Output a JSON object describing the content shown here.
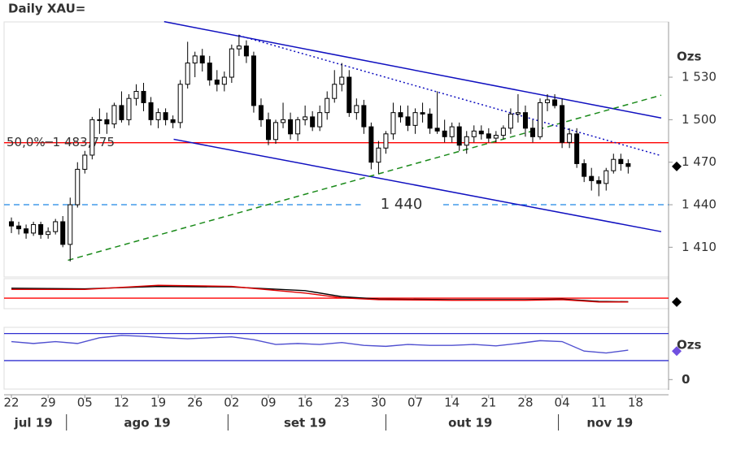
{
  "chart_data": {
    "type": "candlestick",
    "title": "Daily XAU=",
    "unit_label": "Ozs",
    "open": [
      1428,
      1425,
      1423,
      1420,
      1426,
      1419,
      1421,
      1428,
      1412,
      1440,
      1465,
      1475,
      1500,
      1500,
      1497,
      1510,
      1500,
      1515,
      1520,
      1512,
      1500,
      1505,
      1500,
      1498,
      1525,
      1540,
      1545,
      1540,
      1528,
      1525,
      1530,
      1550,
      1552,
      1545,
      1510,
      1500,
      1486,
      1498,
      1500,
      1490,
      1500,
      1502,
      1495,
      1505,
      1515,
      1525,
      1530,
      1505,
      1510,
      1495,
      1470,
      1480,
      1490,
      1505,
      1502,
      1496,
      1505,
      1504,
      1494,
      1492,
      1488,
      1495,
      1482,
      1488,
      1492,
      1490,
      1487,
      1489,
      1494,
      1504,
      1505,
      1494,
      1488,
      1512,
      1514,
      1510,
      1484,
      1490,
      1469,
      1460,
      1457,
      1455,
      1464,
      1472,
      1469
    ],
    "high": [
      1431,
      1428,
      1426,
      1428,
      1428,
      1424,
      1430,
      1432,
      1445,
      1470,
      1478,
      1502,
      1508,
      1505,
      1512,
      1520,
      1518,
      1525,
      1526,
      1516,
      1508,
      1508,
      1503,
      1528,
      1555,
      1548,
      1550,
      1545,
      1535,
      1534,
      1553,
      1560,
      1556,
      1548,
      1515,
      1505,
      1500,
      1512,
      1505,
      1502,
      1510,
      1506,
      1510,
      1520,
      1535,
      1540,
      1535,
      1515,
      1514,
      1498,
      1485,
      1492,
      1512,
      1510,
      1510,
      1508,
      1512,
      1508,
      1520,
      1500,
      1498,
      1498,
      1492,
      1496,
      1496,
      1494,
      1492,
      1496,
      1508,
      1518,
      1510,
      1500,
      1515,
      1518,
      1518,
      1515,
      1494,
      1494,
      1472,
      1466,
      1460,
      1466,
      1476,
      1476,
      1472
    ],
    "low": [
      1420,
      1419,
      1416,
      1418,
      1416,
      1416,
      1419,
      1410,
      1400,
      1438,
      1462,
      1472,
      1490,
      1490,
      1494,
      1498,
      1496,
      1510,
      1506,
      1496,
      1494,
      1496,
      1494,
      1494,
      1522,
      1530,
      1534,
      1524,
      1520,
      1520,
      1526,
      1545,
      1540,
      1505,
      1495,
      1482,
      1483,
      1494,
      1486,
      1485,
      1496,
      1492,
      1492,
      1500,
      1512,
      1520,
      1502,
      1500,
      1490,
      1465,
      1462,
      1476,
      1486,
      1498,
      1492,
      1490,
      1498,
      1490,
      1490,
      1484,
      1484,
      1478,
      1476,
      1484,
      1486,
      1484,
      1484,
      1486,
      1490,
      1498,
      1488,
      1484,
      1486,
      1506,
      1508,
      1480,
      1480,
      1466,
      1456,
      1450,
      1446,
      1450,
      1462,
      1464,
      1462
    ],
    "close": [
      1425,
      1423,
      1420,
      1426,
      1419,
      1421,
      1428,
      1412,
      1440,
      1465,
      1475,
      1500,
      1500,
      1497,
      1510,
      1500,
      1515,
      1520,
      1512,
      1500,
      1505,
      1500,
      1498,
      1525,
      1540,
      1545,
      1540,
      1528,
      1525,
      1530,
      1550,
      1552,
      1545,
      1510,
      1500,
      1486,
      1498,
      1500,
      1490,
      1500,
      1502,
      1495,
      1505,
      1515,
      1525,
      1530,
      1505,
      1510,
      1495,
      1470,
      1480,
      1490,
      1505,
      1502,
      1496,
      1505,
      1504,
      1494,
      1492,
      1488,
      1495,
      1482,
      1488,
      1492,
      1490,
      1487,
      1489,
      1494,
      1504,
      1505,
      1494,
      1488,
      1512,
      1514,
      1510,
      1484,
      1490,
      1469,
      1460,
      1457,
      1455,
      1464,
      1472,
      1469,
      1467
    ],
    "up_color": "#ffffff",
    "down_color": "#000000",
    "ylim": [
      1389,
      1569
    ],
    "yticks": [
      {
        "value": 1410,
        "label": "1 410"
      },
      {
        "value": 1440,
        "label": "1 440"
      },
      {
        "value": 1470,
        "label": "1 470"
      },
      {
        "value": 1500,
        "label": "1 500"
      },
      {
        "value": 1530,
        "label": "1 530"
      }
    ],
    "xlim": [
      -1,
      89.5
    ],
    "xticks": [
      {
        "value": 0,
        "label": "22"
      },
      {
        "value": 5,
        "label": "29"
      },
      {
        "value": 10,
        "label": "05"
      },
      {
        "value": 15,
        "label": "12"
      },
      {
        "value": 20,
        "label": "19"
      },
      {
        "value": 25,
        "label": "26"
      },
      {
        "value": 30,
        "label": "02"
      },
      {
        "value": 35,
        "label": "09"
      },
      {
        "value": 40,
        "label": "16"
      },
      {
        "value": 45,
        "label": "23"
      },
      {
        "value": 50,
        "label": "30"
      },
      {
        "value": 55,
        "label": "07"
      },
      {
        "value": 60,
        "label": "14"
      },
      {
        "value": 65,
        "label": "21"
      },
      {
        "value": 70,
        "label": "28"
      },
      {
        "value": 75,
        "label": "04"
      },
      {
        "value": 80,
        "label": "11"
      },
      {
        "value": 85,
        "label": "18"
      }
    ],
    "month_ticks": [
      {
        "value": 3,
        "label": "jul 19"
      },
      {
        "value": 18.5,
        "label": "ago 19"
      },
      {
        "value": 40,
        "label": "set 19"
      },
      {
        "value": 62.5,
        "label": "out 19"
      },
      {
        "value": 81.5,
        "label": "nov 19"
      }
    ],
    "month_separators": [
      7.5,
      29.5,
      51,
      74.5
    ],
    "trendlines": [
      {
        "x": [
          20.8,
          88.5
        ],
        "y": [
          1569.2,
          1501.2
        ],
        "color": "#1010c0",
        "style": "solid"
      },
      {
        "x": [
          22.1,
          88.5
        ],
        "y": [
          1486.2,
          1421.0
        ],
        "color": "#1010c0",
        "style": "solid"
      },
      {
        "x": [
          7.7,
          88.5
        ],
        "y": [
          1400.8,
          1517.3
        ],
        "color": "#1a8a1a",
        "style": "dashed"
      },
      {
        "x": [
          31.0,
          88.5
        ],
        "y": [
          1559.4,
          1474.6
        ],
        "color": "#1010c0",
        "style": "dotted"
      }
    ],
    "hlines": [
      {
        "value": 1483.775,
        "label": "50,0%─1 483,775",
        "color": "#ff0000",
        "style": "solid",
        "label_pos": "left"
      },
      {
        "value": 1440,
        "label": "1 440",
        "color": "#1e88e5",
        "style": "dashed",
        "label_pos": "middle"
      }
    ],
    "last_price": 1467,
    "ma_panel": {
      "ylim": [
        0,
        100
      ],
      "level": 35,
      "level_color": "#ff0000",
      "last": 22,
      "series": [
        {
          "color": "#000000",
          "x": [
            0,
            10,
            20,
            30,
            40,
            45,
            50,
            60,
            70,
            75,
            80,
            84
          ],
          "values": [
            68,
            66,
            74,
            72,
            60,
            40,
            32,
            30,
            30,
            32,
            24,
            23
          ]
        },
        {
          "color": "#e00000",
          "x": [
            0,
            10,
            20,
            30,
            40,
            45,
            50,
            60,
            70,
            75,
            80,
            84
          ],
          "values": [
            64,
            64,
            78,
            74,
            52,
            36,
            30,
            28,
            28,
            30,
            22,
            22
          ]
        }
      ]
    },
    "osc_panel": {
      "ylim": [
        -20,
        110
      ],
      "yticks": [
        0
      ],
      "unit_label": "Ozs",
      "levels": [
        40,
        97
      ],
      "level_color": "#3030d0",
      "last": 60,
      "series": [
        {
          "color": "#5050d0",
          "x": [
            0,
            3,
            6,
            9,
            12,
            15,
            18,
            21,
            24,
            27,
            30,
            33,
            36,
            39,
            42,
            45,
            48,
            51,
            54,
            57,
            60,
            63,
            66,
            69,
            72,
            75,
            78,
            81,
            84
          ],
          "values": [
            80,
            76,
            80,
            76,
            88,
            93,
            91,
            88,
            86,
            88,
            90,
            84,
            74,
            76,
            74,
            78,
            72,
            70,
            74,
            72,
            72,
            74,
            71,
            76,
            82,
            80,
            60,
            56,
            62
          ]
        }
      ]
    }
  }
}
